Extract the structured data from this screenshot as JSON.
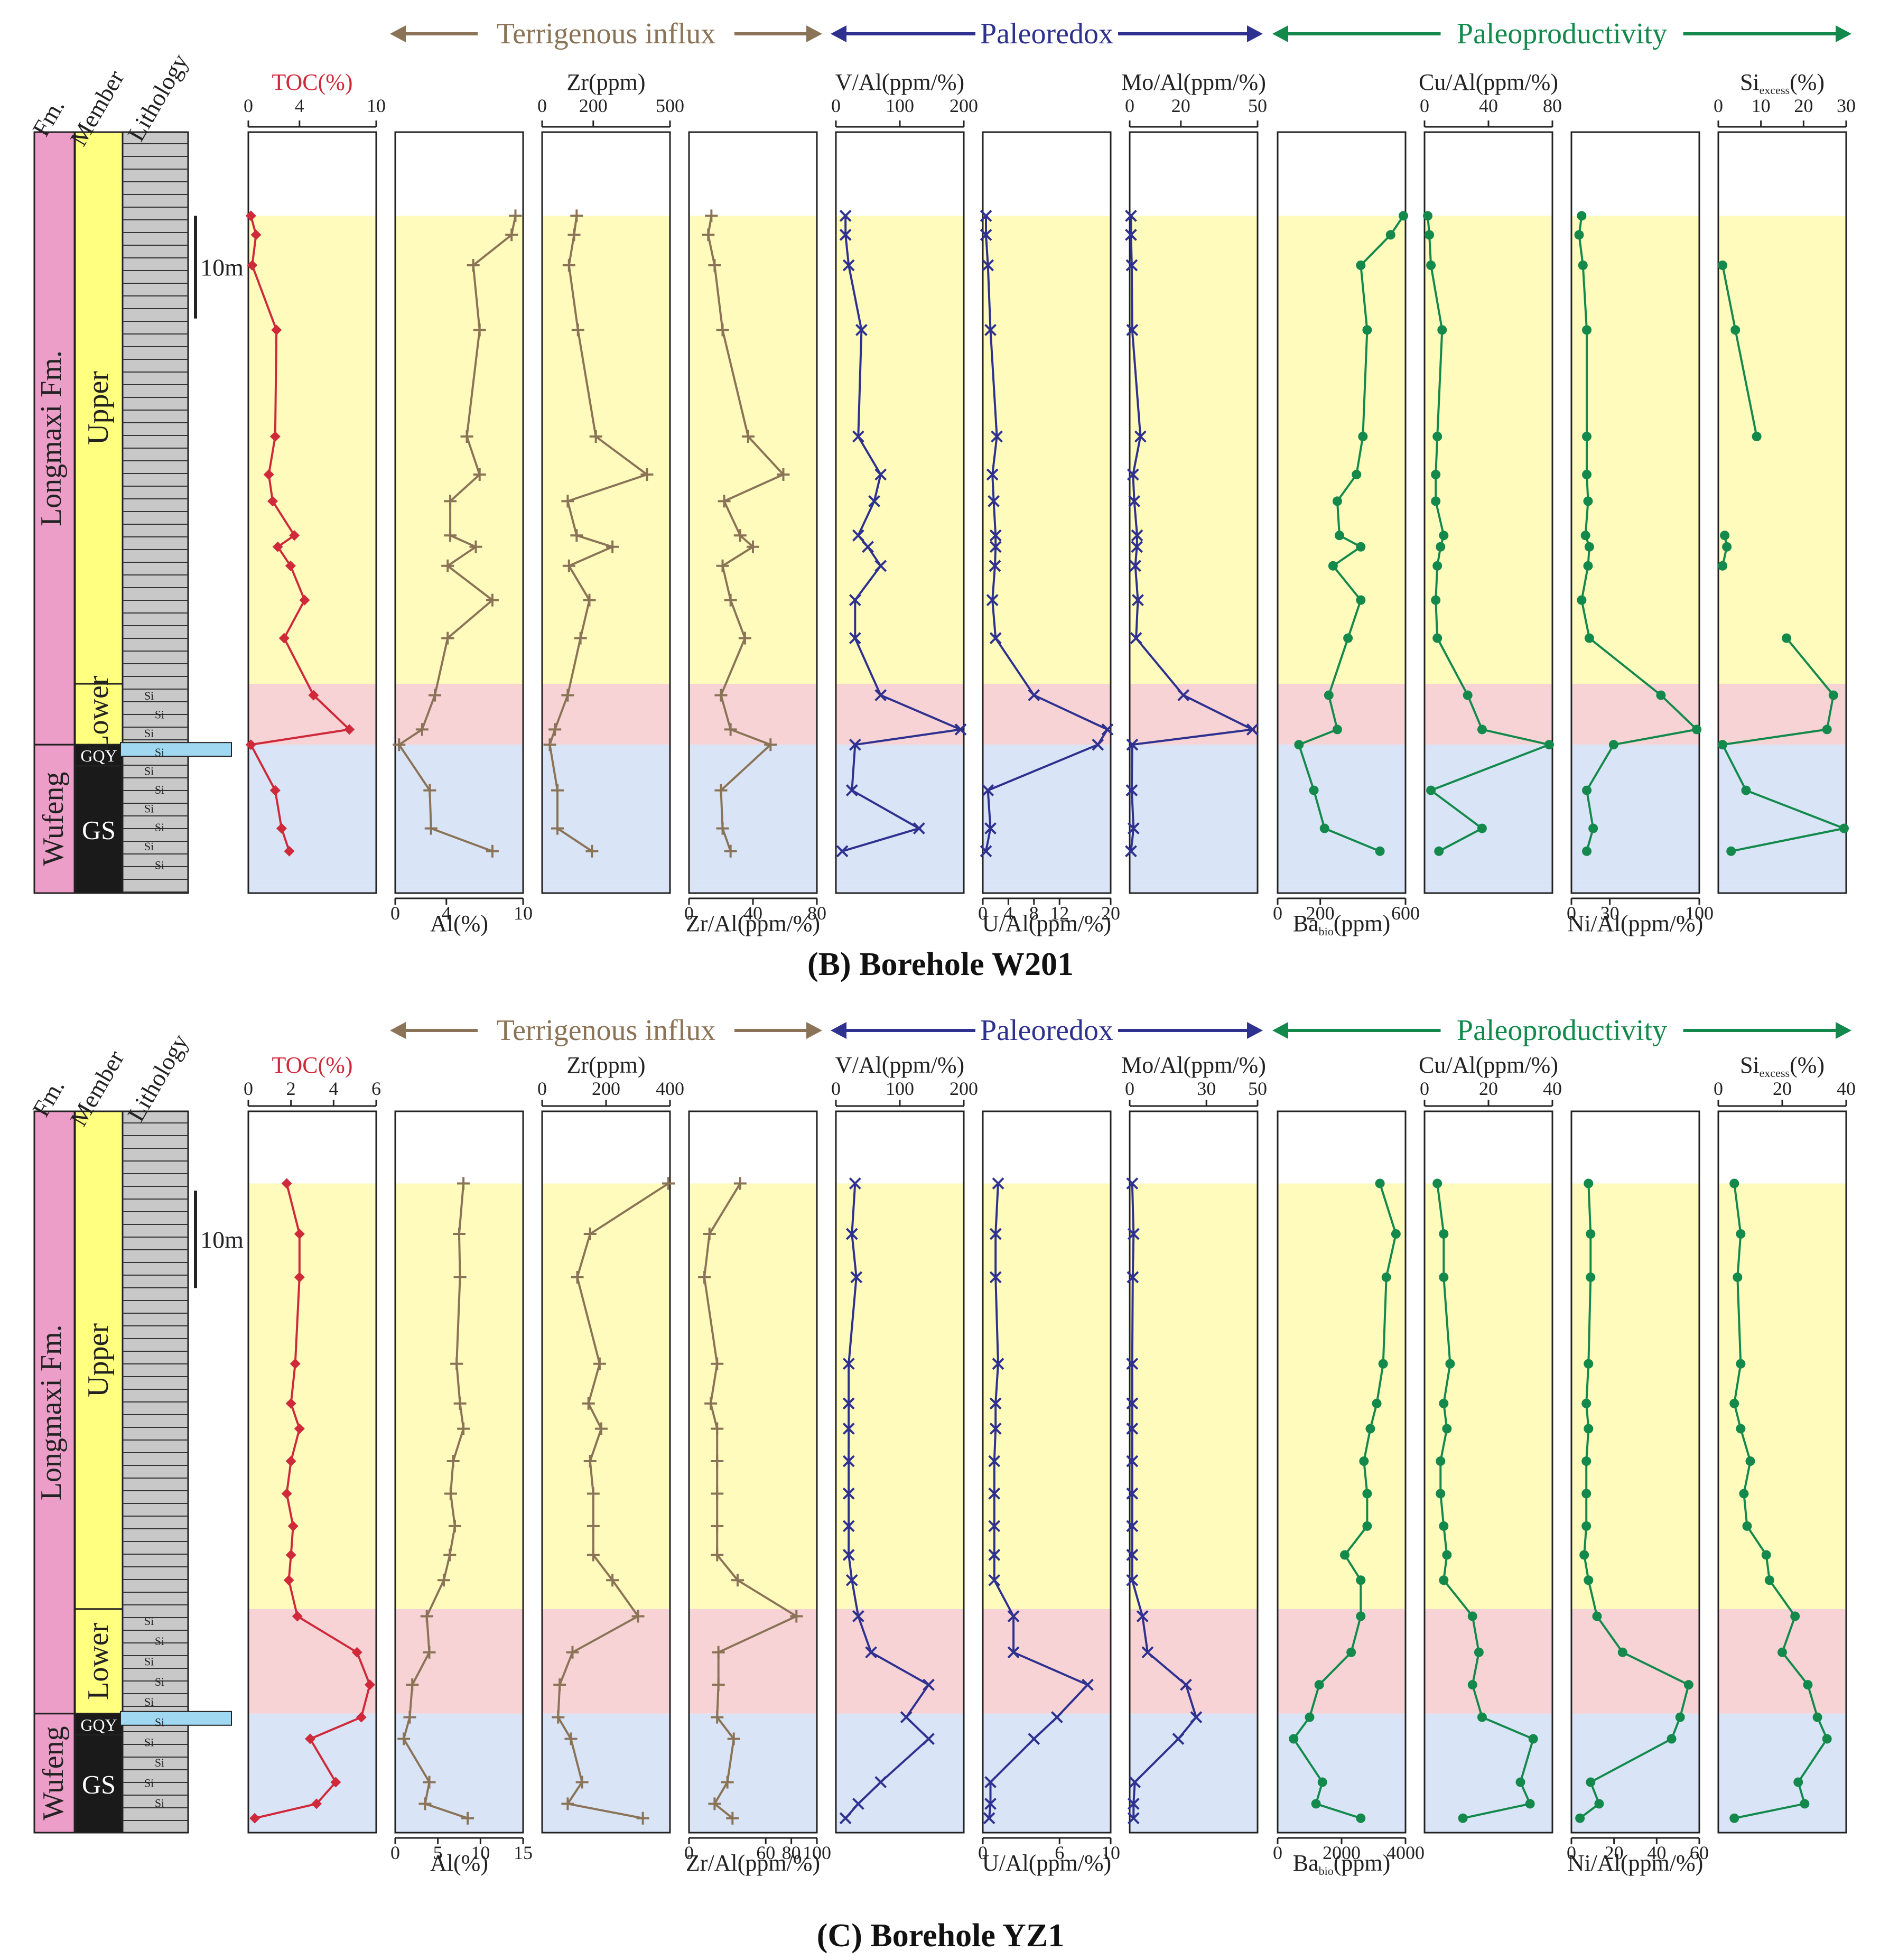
{
  "colors": {
    "toc": "#d0293a",
    "terrigenous": "#8a7356",
    "paleoredox": "#2e318f",
    "paleoproductivity": "#138a4c",
    "zone_upper": "#fefbbd",
    "zone_lower": "#f7d3d6",
    "zone_wufeng": "#d9e4f7",
    "fm_longmaxi": "#ec9ec8",
    "member_yellow": "#ffff80",
    "member_black": "#1a1a1a",
    "gqy_blue": "#9fd8f0",
    "litho_gray": "#c8c8c8"
  },
  "chart_data": [
    {
      "type": "line",
      "title": "(B) Borehole W201",
      "column_headers": {
        "fm": "Fm.",
        "member": "Member",
        "lithology": "Lithology"
      },
      "formations": [
        "Longmaxi Fm.",
        "Wufeng"
      ],
      "members": [
        "Upper",
        "Lower",
        "GQY",
        "GS"
      ],
      "lithology_marks": [
        "Si",
        "Si",
        "Si",
        "Si",
        "Si",
        "Si",
        "Si",
        "Si",
        "Si",
        "Si"
      ],
      "scale_label": "10m",
      "group_labels": [
        "Terrigenous influx",
        "Paleoredox",
        "Paleoproductivity"
      ],
      "depth_range": [
        0,
        100
      ],
      "zones": [
        {
          "name": "upper",
          "range": [
            11,
            72.5
          ]
        },
        {
          "name": "lower",
          "range": [
            72.5,
            80.5
          ]
        },
        {
          "name": "wufeng",
          "range": [
            80.5,
            99
          ]
        }
      ],
      "depth": [
        11,
        13.5,
        17.5,
        26,
        40,
        45,
        48.5,
        53,
        54.5,
        57,
        61.5,
        66.5,
        74,
        78.5,
        80.5,
        86.5,
        91.5,
        94.5
      ],
      "series": [
        {
          "name": "TOC(%)",
          "group": "toc",
          "axis": "top",
          "ticks": [
            "0",
            "4",
            "10"
          ],
          "range": [
            0,
            10
          ],
          "marker": "diamond",
          "values": [
            0.2,
            0.6,
            0.3,
            2.2,
            2.1,
            1.6,
            1.9,
            3.6,
            2.3,
            3.3,
            4.4,
            2.8,
            5.1,
            7.9,
            0.2,
            2.1,
            2.6,
            3.2
          ]
        },
        {
          "name": "Al(%)",
          "group": "terrigenous",
          "axis": "bottom",
          "ticks": [
            "0",
            "4",
            "10"
          ],
          "range": [
            0,
            10
          ],
          "marker": "plus",
          "values": [
            9.4,
            9.1,
            6.1,
            6.6,
            5.6,
            6.6,
            4.3,
            4.3,
            6.3,
            4.1,
            7.6,
            4.1,
            3.1,
            2.1,
            0.3,
            2.7,
            2.8,
            7.6
          ]
        },
        {
          "name": "Zr(ppm)",
          "group": "terrigenous",
          "axis": "top",
          "ticks": [
            "0",
            "200",
            "500"
          ],
          "range": [
            0,
            500
          ],
          "marker": "plus",
          "values": [
            135,
            125,
            105,
            140,
            210,
            410,
            100,
            135,
            275,
            105,
            185,
            150,
            100,
            50,
            30,
            60,
            60,
            195
          ]
        },
        {
          "name": "Zr/Al(ppm/%)",
          "group": "terrigenous",
          "axis": "bottom",
          "ticks": [
            "0",
            "40",
            "80"
          ],
          "range": [
            0,
            80
          ],
          "marker": "plus",
          "values": [
            14,
            12,
            16,
            21,
            37,
            59,
            22,
            32,
            40,
            21,
            26,
            35,
            20,
            26,
            51,
            20,
            21,
            26
          ]
        },
        {
          "name": "V/Al(ppm/%)",
          "group": "paleoredox",
          "axis": "top",
          "ticks": [
            "0",
            "100",
            "200"
          ],
          "range": [
            0,
            200
          ],
          "marker": "x",
          "values": [
            15,
            15,
            20,
            40,
            35,
            70,
            60,
            35,
            50,
            70,
            30,
            30,
            70,
            195,
            30,
            25,
            130,
            10
          ]
        },
        {
          "name": "U/Al(ppm/%)",
          "group": "paleoredox",
          "axis": "bottom",
          "ticks": [
            "0",
            "4",
            "8",
            "12",
            "20"
          ],
          "range": [
            0,
            20
          ],
          "marker": "x",
          "values": [
            0.5,
            0.5,
            0.8,
            1.2,
            2.2,
            1.5,
            1.7,
            2.0,
            2.0,
            1.9,
            1.5,
            2.0,
            8.0,
            19.5,
            18.0,
            0.8,
            1.2,
            0.5
          ]
        },
        {
          "name": "Mo/Al(ppm/%)",
          "group": "paleoredox",
          "axis": "top",
          "ticks": [
            "0",
            "20",
            "50"
          ],
          "range": [
            0,
            50
          ],
          "marker": "x",
          "values": [
            0.5,
            0.5,
            0.8,
            1.0,
            4.2,
            1.3,
            1.8,
            2.9,
            2.8,
            2.2,
            3.2,
            2.5,
            21,
            48,
            1.0,
            0.8,
            1.5,
            0.5
          ]
        },
        {
          "name": "Ba_bio(ppm)",
          "group": "paleoproductivity",
          "axis": "bottom",
          "ticks": [
            "0",
            "200",
            "600"
          ],
          "range": [
            0,
            600
          ],
          "marker": "dot",
          "values": [
            590,
            530,
            390,
            420,
            400,
            370,
            280,
            290,
            390,
            260,
            390,
            330,
            240,
            280,
            100,
            170,
            220,
            480
          ]
        },
        {
          "name": "Cu/Al(ppm/%)",
          "group": "paleoproductivity",
          "axis": "top",
          "ticks": [
            "0",
            "40",
            "80"
          ],
          "range": [
            0,
            80
          ],
          "marker": "dot",
          "values": [
            2,
            3,
            4,
            11,
            8,
            7,
            7,
            12,
            10,
            8,
            7,
            8,
            27,
            36,
            78,
            4,
            36,
            9
          ]
        },
        {
          "name": "Ni/Al(ppm/%)",
          "group": "paleoproductivity",
          "axis": "bottom",
          "ticks": [
            "0",
            "30",
            "100"
          ],
          "range": [
            0,
            100
          ],
          "marker": "dot",
          "values": [
            8,
            6,
            9,
            12,
            12,
            12,
            13,
            11,
            14,
            13,
            8,
            14,
            70,
            98,
            33,
            12,
            17,
            12
          ]
        },
        {
          "name": "Si_excess(%)",
          "group": "paleoproductivity",
          "axis": "top",
          "ticks": [
            "0",
            "10",
            "20",
            "30"
          ],
          "range": [
            0,
            30
          ],
          "marker": "dot",
          "values": [
            null,
            null,
            1.0,
            4.0,
            9.0,
            null,
            null,
            1.5,
            2.0,
            1.0,
            null,
            16.0,
            27.0,
            25.5,
            1.0,
            6.5,
            29.5,
            3.0
          ]
        }
      ]
    },
    {
      "type": "line",
      "title": "(C) Borehole YZ1",
      "column_headers": {
        "fm": "Fm.",
        "member": "Member",
        "lithology": "Lithology"
      },
      "formations": [
        "Longmaxi Fm.",
        "Wufeng"
      ],
      "members": [
        "Upper",
        "Lower",
        "GQY",
        "GS"
      ],
      "lithology_marks": [
        "Si",
        "Si",
        "Si",
        "Si",
        "Si",
        "Si",
        "Si",
        "Si",
        "Si",
        "Si"
      ],
      "scale_label": "10m",
      "group_labels": [
        "Terrigenous influx",
        "Paleoredox",
        "Paleoproductivity"
      ],
      "depth_range": [
        0,
        100
      ],
      "zones": [
        {
          "name": "upper",
          "range": [
            10,
            69
          ]
        },
        {
          "name": "lower",
          "range": [
            69,
            83.5
          ]
        },
        {
          "name": "wufeng",
          "range": [
            83.5,
            98
          ]
        }
      ],
      "depth": [
        10,
        17,
        23,
        35,
        40.5,
        44,
        48.5,
        53,
        57.5,
        61.5,
        65,
        70,
        75,
        79.5,
        84,
        87,
        93,
        96,
        98
      ],
      "series": [
        {
          "name": "TOC(%)",
          "group": "toc",
          "axis": "top",
          "ticks": [
            "0",
            "2",
            "4",
            "6"
          ],
          "range": [
            0,
            6
          ],
          "marker": "diamond",
          "values": [
            1.8,
            2.4,
            2.4,
            2.2,
            2.0,
            2.4,
            2.0,
            1.8,
            2.1,
            2.0,
            1.9,
            2.3,
            5.1,
            5.7,
            5.3,
            2.9,
            4.1,
            3.2,
            0.3
          ]
        },
        {
          "name": "Al(%)",
          "group": "terrigenous",
          "axis": "bottom",
          "ticks": [
            "0",
            "5",
            "10",
            "15"
          ],
          "range": [
            0,
            15
          ],
          "marker": "plus",
          "values": [
            8.0,
            7.5,
            7.6,
            7.2,
            7.6,
            8.0,
            6.8,
            6.5,
            7.0,
            6.4,
            5.7,
            3.7,
            4.0,
            2.0,
            1.7,
            1.0,
            4.0,
            3.5,
            8.5
          ]
        },
        {
          "name": "Zr(ppm)",
          "group": "terrigenous",
          "axis": "top",
          "ticks": [
            "0",
            "200",
            "400"
          ],
          "range": [
            0,
            400
          ],
          "marker": "plus",
          "values": [
            395,
            150,
            110,
            180,
            145,
            185,
            150,
            160,
            160,
            160,
            220,
            300,
            95,
            55,
            50,
            90,
            125,
            80,
            315
          ]
        },
        {
          "name": "Zr/Al(ppm/%)",
          "group": "terrigenous",
          "axis": "bottom",
          "ticks": [
            "0",
            "60",
            "80",
            "100"
          ],
          "range": [
            0,
            100
          ],
          "marker": "plus",
          "values": [
            40,
            16,
            12,
            22,
            17,
            22,
            22,
            22,
            22,
            22,
            38,
            84,
            23,
            23,
            22,
            35,
            30,
            20,
            34
          ]
        },
        {
          "name": "V/Al(ppm/%)",
          "group": "paleoredox",
          "axis": "top",
          "ticks": [
            "0",
            "100",
            "200"
          ],
          "range": [
            0,
            200
          ],
          "marker": "x",
          "values": [
            30,
            25,
            32,
            20,
            20,
            20,
            20,
            20,
            20,
            20,
            25,
            35,
            55,
            145,
            110,
            145,
            70,
            35,
            15
          ]
        },
        {
          "name": "U/Al(ppm/%)",
          "group": "paleoredox",
          "axis": "bottom",
          "ticks": [
            "0",
            "6",
            "10"
          ],
          "range": [
            0,
            10
          ],
          "marker": "x",
          "values": [
            1.2,
            1.0,
            1.0,
            1.2,
            1.0,
            1.0,
            0.9,
            0.9,
            0.9,
            0.9,
            0.9,
            2.4,
            2.4,
            8.2,
            5.8,
            4.0,
            0.6,
            0.6,
            0.5
          ]
        },
        {
          "name": "Mo/Al(ppm/%)",
          "group": "paleoredox",
          "axis": "top",
          "ticks": [
            "0",
            "30",
            "50"
          ],
          "range": [
            0,
            50
          ],
          "marker": "x",
          "values": [
            1.0,
            1.5,
            1.2,
            1.0,
            1.0,
            1.0,
            1.0,
            1.0,
            1.0,
            1.0,
            1.0,
            5.0,
            7.0,
            22,
            26,
            19,
            2.0,
            1.5,
            1.5
          ]
        },
        {
          "name": "Ba_bio(ppm)",
          "group": "paleoproductivity",
          "axis": "bottom",
          "ticks": [
            "0",
            "2000",
            "4000"
          ],
          "range": [
            0,
            4000
          ],
          "marker": "dot",
          "values": [
            3200,
            3700,
            3400,
            3300,
            3100,
            2900,
            2700,
            2800,
            2800,
            2100,
            2600,
            2600,
            2300,
            1300,
            1000,
            500,
            1400,
            1200,
            2600
          ]
        },
        {
          "name": "Cu/Al(ppm/%)",
          "group": "paleoproductivity",
          "axis": "top",
          "ticks": [
            "0",
            "20",
            "40"
          ],
          "range": [
            0,
            40
          ],
          "marker": "dot",
          "values": [
            4,
            6,
            6,
            8,
            6,
            7,
            5,
            5,
            6,
            7,
            6,
            15,
            17,
            15,
            18,
            34,
            30,
            33,
            12
          ]
        },
        {
          "name": "Ni/Al(ppm/%)",
          "group": "paleoproductivity",
          "axis": "bottom",
          "ticks": [
            "0",
            "20",
            "40",
            "60"
          ],
          "range": [
            0,
            60
          ],
          "marker": "dot",
          "values": [
            8,
            9,
            9,
            8,
            7,
            8,
            7,
            7,
            7,
            6,
            8,
            12,
            24,
            55,
            51,
            47,
            9,
            13,
            4
          ]
        },
        {
          "name": "Si_excess(%)",
          "group": "paleoproductivity",
          "axis": "top",
          "ticks": [
            "0",
            "20",
            "40"
          ],
          "range": [
            0,
            40
          ],
          "marker": "dot",
          "values": [
            5,
            7,
            6,
            7,
            5,
            7,
            10,
            8,
            9,
            15,
            16,
            24,
            20,
            28,
            31,
            34,
            25,
            27,
            5
          ]
        }
      ]
    }
  ]
}
